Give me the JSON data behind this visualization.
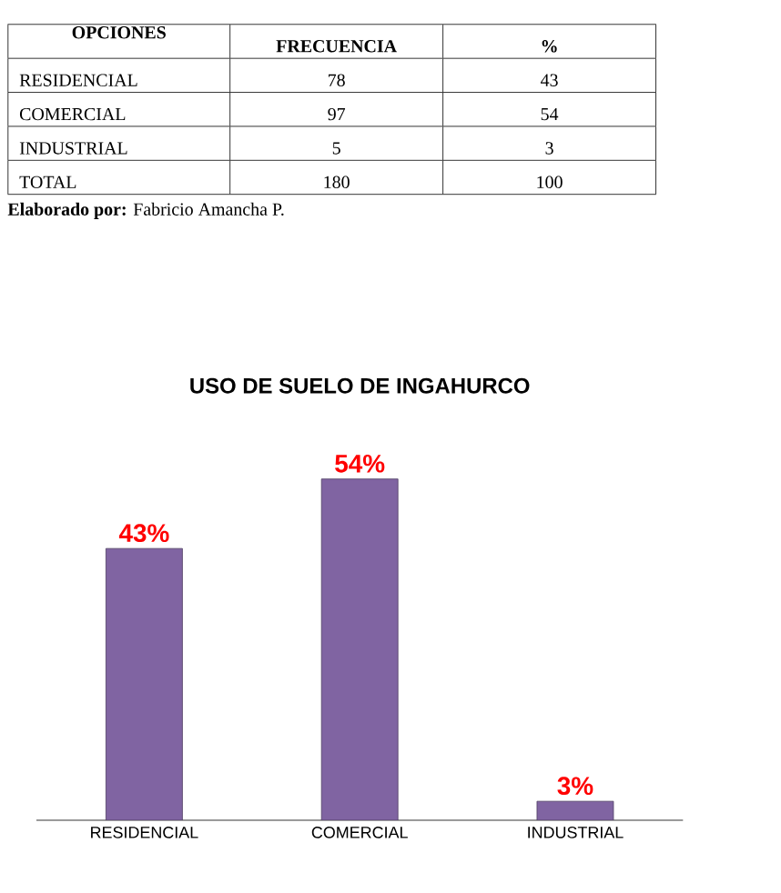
{
  "chart_data": {
    "type": "bar",
    "title": "USO DE SUELO DE INGAHURCO",
    "categories": [
      "RESIDENCIAL",
      "COMERCIAL",
      "INDUSTRIAL"
    ],
    "values": [
      43,
      54,
      3
    ],
    "value_labels": [
      "43%",
      "54%",
      "3%"
    ],
    "color": "#8064a2",
    "annotations": [
      "OPCIONES",
      "FRECUENCIA",
      "%",
      "RESIDENCIAL",
      "78",
      "43",
      "COMERCIAL",
      "97",
      "54",
      "INDUSTRIAL",
      "5",
      "3",
      "TOTAL",
      "180",
      "100",
      "**Elaborado por:** Fabricio Amancha P."
    ]
  }
}
